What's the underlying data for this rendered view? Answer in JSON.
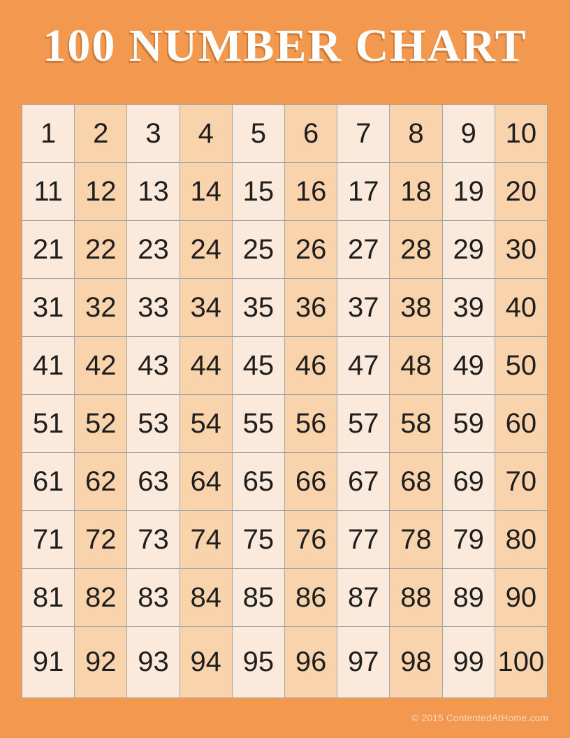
{
  "page": {
    "title": "100 NUMBER CHART",
    "footer": "© 2015 ContentedAtHome.com",
    "background_color": "#F2994F",
    "title_color": "#FFFFFF",
    "footer_color": "rgba(255,255,255,0.62)"
  },
  "grid": {
    "rows": 10,
    "columns": 10,
    "cell_color_light": "#FBEADC",
    "cell_color_dark": "#F9D3AC",
    "grid_line_color": "#A6A6A6",
    "number_color": "#1E1E1E",
    "numbers": [
      1,
      2,
      3,
      4,
      5,
      6,
      7,
      8,
      9,
      10,
      11,
      12,
      13,
      14,
      15,
      16,
      17,
      18,
      19,
      20,
      21,
      22,
      23,
      24,
      25,
      26,
      27,
      28,
      29,
      30,
      31,
      32,
      33,
      34,
      35,
      36,
      37,
      38,
      39,
      40,
      41,
      42,
      43,
      44,
      45,
      46,
      47,
      48,
      49,
      50,
      51,
      52,
      53,
      54,
      55,
      56,
      57,
      58,
      59,
      60,
      61,
      62,
      63,
      64,
      65,
      66,
      67,
      68,
      69,
      70,
      71,
      72,
      73,
      74,
      75,
      76,
      77,
      78,
      79,
      80,
      81,
      82,
      83,
      84,
      85,
      86,
      87,
      88,
      89,
      90,
      91,
      92,
      93,
      94,
      95,
      96,
      97,
      98,
      99,
      100
    ]
  }
}
